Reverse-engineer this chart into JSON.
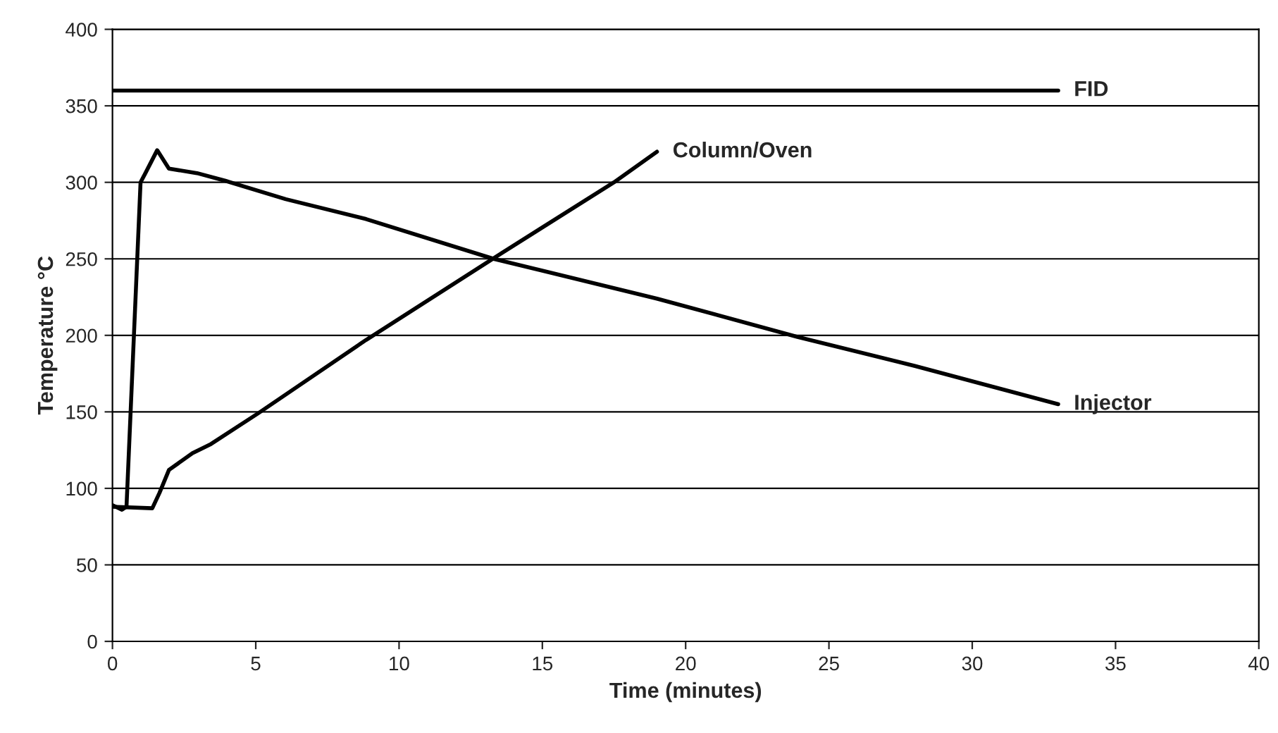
{
  "chart_data": {
    "type": "line",
    "xlabel": "Time (minutes)",
    "ylabel": "Temperature °C",
    "xlim": [
      0,
      40
    ],
    "xticks": [
      0,
      5,
      10,
      15,
      20,
      25,
      30,
      35,
      40
    ],
    "ylim": [
      0,
      400
    ],
    "yticks": [
      0,
      50,
      100,
      150,
      200,
      250,
      300,
      350,
      400
    ],
    "grid": "y",
    "legend": false,
    "marker": "none",
    "line_style": "solid",
    "series": [
      {
        "name": "FID",
        "color": "#000000",
        "x": [
          0,
          33
        ],
        "values": [
          360,
          360
        ]
      },
      {
        "name": "Column/Oven",
        "color": "#000000",
        "x": [
          0,
          1.39,
          1.64,
          1.97,
          2.79,
          3.44,
          5.08,
          8.85,
          13.6,
          17.5,
          19.0
        ],
        "values": [
          88,
          87,
          97,
          112,
          123,
          129,
          149,
          197,
          254,
          300,
          320
        ]
      },
      {
        "name": "Injector",
        "color": "#000000",
        "x": [
          0,
          0.33,
          0.49,
          0.98,
          1.15,
          1.56,
          1.97,
          2.95,
          3.94,
          6.05,
          8.85,
          13.3,
          19.0,
          23.9,
          28.0,
          33.0
        ],
        "values": [
          89,
          86,
          88,
          300,
          306,
          321,
          309,
          306,
          301,
          289,
          276,
          250,
          224,
          199,
          180,
          155
        ]
      }
    ]
  }
}
